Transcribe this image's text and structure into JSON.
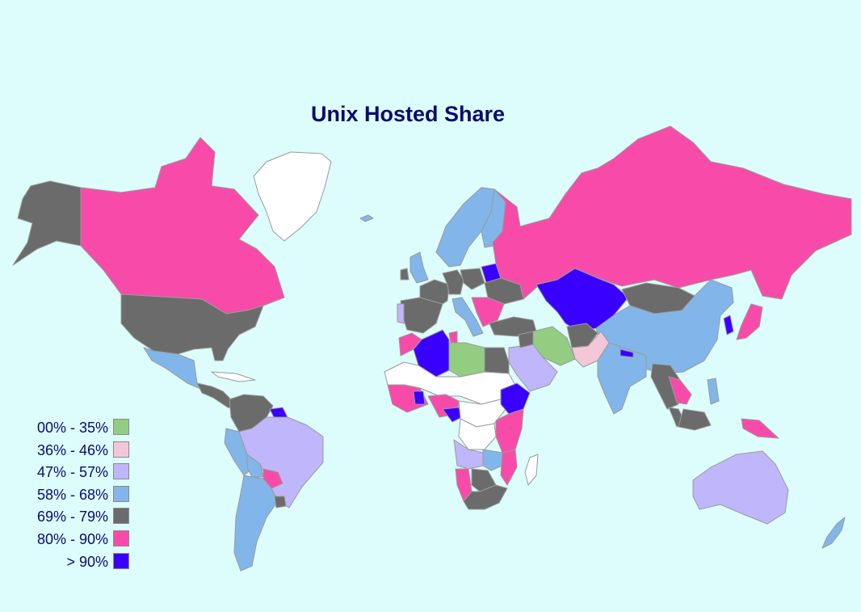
{
  "title": "Unix Hosted Share",
  "colors": {
    "background": "#dcfdfb",
    "no_data": "#ffffff",
    "border": "#9a9a9a",
    "text": "#0a0a6e"
  },
  "legend": [
    {
      "label": "00% - 35%",
      "color": "#93cd82"
    },
    {
      "label": "36% - 46%",
      "color": "#f4c7d8"
    },
    {
      "label": "47% - 57%",
      "color": "#c0b6fb"
    },
    {
      "label": "58% - 68%",
      "color": "#82b6ea"
    },
    {
      "label": "69% - 79%",
      "color": "#6b6b6b"
    },
    {
      "label": "80% - 90%",
      "color": "#f84ba9"
    },
    {
      "label": "> 90%",
      "color": "#3a00ff"
    }
  ],
  "regions": [
    {
      "name": "alaska",
      "bin": 4
    },
    {
      "name": "canada",
      "bin": 5
    },
    {
      "name": "greenland",
      "bin": null
    },
    {
      "name": "usa",
      "bin": 4
    },
    {
      "name": "mexico",
      "bin": 3
    },
    {
      "name": "cuba",
      "bin": null
    },
    {
      "name": "central-america",
      "bin": 4
    },
    {
      "name": "colombia-venezuela",
      "bin": 4
    },
    {
      "name": "guyana",
      "bin": 6
    },
    {
      "name": "brazil",
      "bin": 2
    },
    {
      "name": "peru",
      "bin": 3
    },
    {
      "name": "bolivia",
      "bin": 3
    },
    {
      "name": "paraguay",
      "bin": 5
    },
    {
      "name": "argentina-chile",
      "bin": 3
    },
    {
      "name": "uruguay",
      "bin": 4
    },
    {
      "name": "iceland",
      "bin": 3
    },
    {
      "name": "uk",
      "bin": 3
    },
    {
      "name": "ireland",
      "bin": 4
    },
    {
      "name": "scandinavia",
      "bin": 3
    },
    {
      "name": "finland",
      "bin": 3
    },
    {
      "name": "spain",
      "bin": 4
    },
    {
      "name": "portugal",
      "bin": 2
    },
    {
      "name": "france",
      "bin": 4
    },
    {
      "name": "germany",
      "bin": 4
    },
    {
      "name": "poland",
      "bin": 4
    },
    {
      "name": "belarus",
      "bin": 6
    },
    {
      "name": "ukraine",
      "bin": 4
    },
    {
      "name": "italy",
      "bin": 3
    },
    {
      "name": "balkans",
      "bin": 5
    },
    {
      "name": "russia",
      "bin": 5
    },
    {
      "name": "kazakhstan",
      "bin": 6
    },
    {
      "name": "mongolia",
      "bin": 4
    },
    {
      "name": "china",
      "bin": 3
    },
    {
      "name": "korea",
      "bin": 6
    },
    {
      "name": "japan",
      "bin": 5
    },
    {
      "name": "turkey",
      "bin": 4
    },
    {
      "name": "iran",
      "bin": 0
    },
    {
      "name": "afghanistan",
      "bin": 4
    },
    {
      "name": "pakistan",
      "bin": 1
    },
    {
      "name": "india",
      "bin": 3
    },
    {
      "name": "nepal",
      "bin": 6
    },
    {
      "name": "saudi-arabia",
      "bin": 2
    },
    {
      "name": "iraq",
      "bin": 4
    },
    {
      "name": "indochina",
      "bin": 4
    },
    {
      "name": "thailand",
      "bin": 5
    },
    {
      "name": "malaysia",
      "bin": 4
    },
    {
      "name": "philippines",
      "bin": 3
    },
    {
      "name": "indonesia",
      "bin": 4
    },
    {
      "name": "new-guinea",
      "bin": 5
    },
    {
      "name": "australia",
      "bin": 2
    },
    {
      "name": "new-zealand",
      "bin": 3
    },
    {
      "name": "morocco",
      "bin": 5
    },
    {
      "name": "algeria",
      "bin": 6
    },
    {
      "name": "tunisia",
      "bin": 5
    },
    {
      "name": "libya",
      "bin": 0
    },
    {
      "name": "egypt",
      "bin": 4
    },
    {
      "name": "sahel",
      "bin": null
    },
    {
      "name": "west-africa",
      "bin": 5
    },
    {
      "name": "ghana",
      "bin": 6
    },
    {
      "name": "nigeria",
      "bin": 5
    },
    {
      "name": "cameroon",
      "bin": 6
    },
    {
      "name": "central-africa",
      "bin": null
    },
    {
      "name": "ethiopia",
      "bin": 6
    },
    {
      "name": "kenya-tanzania",
      "bin": 5
    },
    {
      "name": "congo",
      "bin": null
    },
    {
      "name": "angola",
      "bin": 2
    },
    {
      "name": "zambia",
      "bin": 3
    },
    {
      "name": "namibia",
      "bin": 5
    },
    {
      "name": "mozambique",
      "bin": 5
    },
    {
      "name": "botswana",
      "bin": 4
    },
    {
      "name": "south-africa",
      "bin": 4
    },
    {
      "name": "madagascar",
      "bin": null
    }
  ]
}
